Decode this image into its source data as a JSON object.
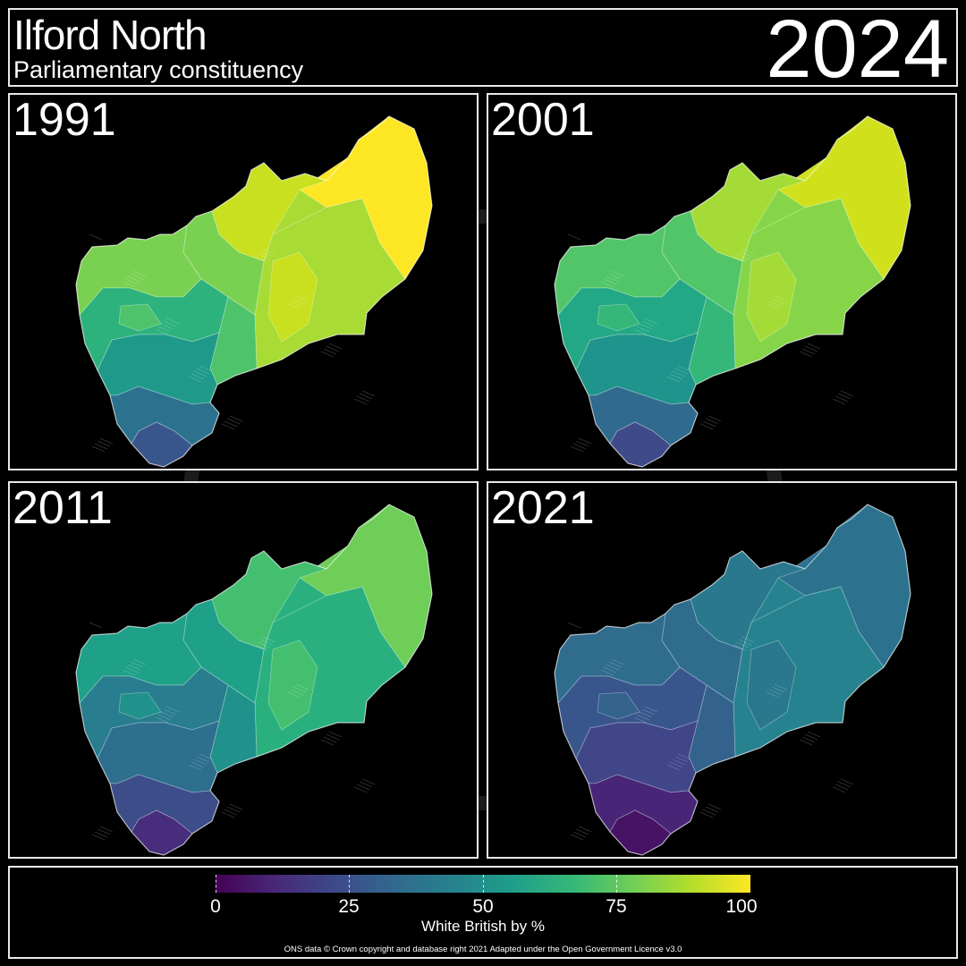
{
  "header": {
    "title": "Ilford North",
    "subtitle": "Parliamentary constituency",
    "year": "2024"
  },
  "panels": [
    {
      "label": "1991",
      "colors": [
        "#fde725",
        "#c8e020",
        "#a8db34",
        "#7ad151",
        "#4ec36b",
        "#2db27d",
        "#1f9a8a",
        "#23898e",
        "#2c728e",
        "#39568c"
      ]
    },
    {
      "label": "2001",
      "colors": [
        "#d0e11c",
        "#a5db36",
        "#86d549",
        "#52c569",
        "#35b779",
        "#22a884",
        "#1f948c",
        "#25838e",
        "#306a8e",
        "#3e4a89"
      ]
    },
    {
      "label": "2011",
      "colors": [
        "#6ece58",
        "#44bf70",
        "#2ab07f",
        "#1fa088",
        "#21918c",
        "#287d8e",
        "#2e6e8e",
        "#355f8d",
        "#3d4d8a",
        "#472d7b"
      ]
    },
    {
      "label": "2021",
      "colors": [
        "#2c728e",
        "#2a788e",
        "#26828e",
        "#2f6c8e",
        "#33638d",
        "#39568c",
        "#404688",
        "#463480",
        "#482576",
        "#471365"
      ]
    }
  ],
  "legend": {
    "ticks": [
      "0",
      "25",
      "50",
      "75",
      "100"
    ],
    "title": "White British by %",
    "credit": "ONS data © Crown copyright and database right 2021 Adapted under the Open Government Licence v3.0",
    "colors": [
      "#440154",
      "#482878",
      "#3e4989",
      "#31688e",
      "#26828e",
      "#1f9e89",
      "#35b779",
      "#6ece58",
      "#b5de2b",
      "#fde725"
    ]
  }
}
